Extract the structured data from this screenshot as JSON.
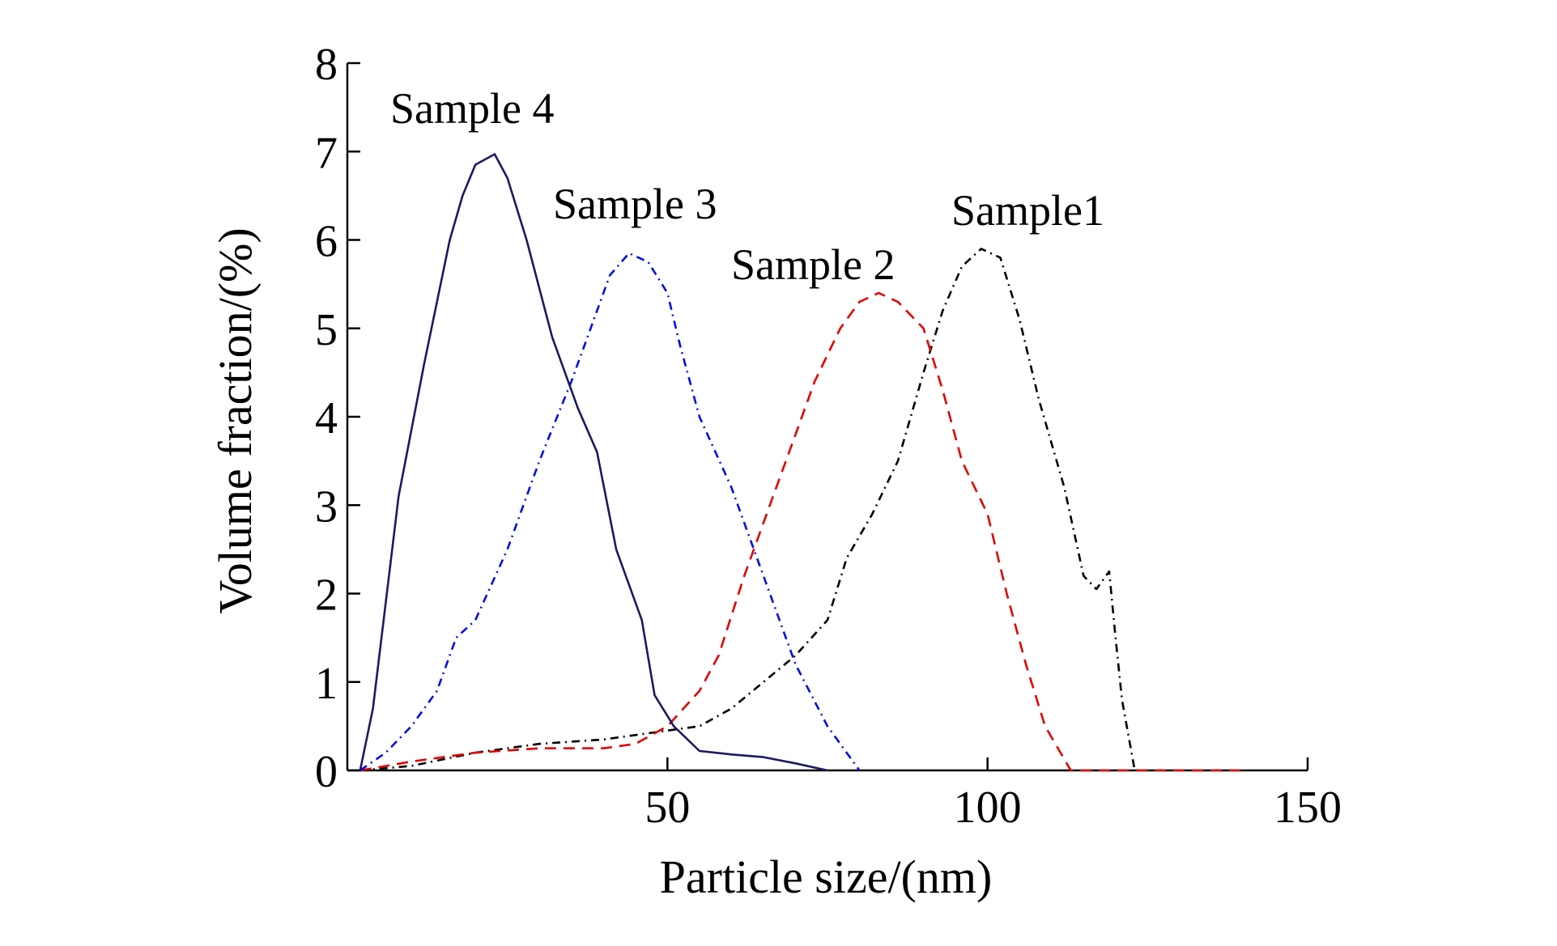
{
  "chart_data": {
    "type": "line",
    "title": "",
    "xlabel": "Particle size/(nm)",
    "ylabel": "Volume fraction/(%)",
    "xlim": [
      0,
      150
    ],
    "ylim": [
      0,
      8
    ],
    "xticks": [
      50,
      100,
      150
    ],
    "xtick_labels": [
      "50",
      "100",
      "150"
    ],
    "yticks": [
      0,
      1,
      2,
      3,
      4,
      5,
      6,
      7,
      8
    ],
    "ytick_labels": [
      "0",
      "1",
      "2",
      "3",
      "4",
      "5",
      "6",
      "7",
      "8"
    ],
    "grid": false,
    "legend": "none",
    "series": [
      {
        "name": "Sample1",
        "color": "#000000",
        "style": "dash-dot",
        "x": [
          2,
          10,
          20,
          30,
          40,
          50,
          55,
          60,
          65,
          70,
          75,
          78,
          82,
          86,
          90,
          93,
          96,
          99,
          102,
          105,
          108,
          112,
          115,
          117,
          119,
          120,
          121,
          123,
          124
        ],
        "y": [
          0,
          0.05,
          0.2,
          0.3,
          0.35,
          0.45,
          0.5,
          0.7,
          1.0,
          1.3,
          1.7,
          2.4,
          2.9,
          3.5,
          4.5,
          5.2,
          5.7,
          5.9,
          5.8,
          5.1,
          4.2,
          3.2,
          2.2,
          2.05,
          2.25,
          1.5,
          0.8,
          0,
          0
        ]
      },
      {
        "name": "Sample 2",
        "color": "#e00000",
        "style": "dashed",
        "x": [
          2,
          10,
          20,
          30,
          40,
          45,
          50,
          55,
          58,
          62,
          65,
          70,
          73,
          77,
          80,
          83,
          86,
          90,
          93,
          96,
          100,
          103,
          106,
          109,
          113,
          140
        ],
        "y": [
          0,
          0.1,
          0.2,
          0.25,
          0.25,
          0.3,
          0.5,
          0.9,
          1.3,
          2.2,
          2.8,
          3.8,
          4.4,
          5.0,
          5.3,
          5.4,
          5.3,
          5.0,
          4.3,
          3.5,
          2.9,
          2.0,
          1.2,
          0.5,
          0,
          0
        ]
      },
      {
        "name": "Sample 3",
        "color": "#0010e0",
        "style": "dash-dot",
        "x": [
          2,
          6,
          10,
          14,
          17,
          20,
          25,
          30,
          35,
          38,
          41,
          44,
          47,
          50,
          52,
          55,
          60,
          65,
          70,
          75,
          80
        ],
        "y": [
          0,
          0.2,
          0.5,
          0.9,
          1.5,
          1.7,
          2.5,
          3.5,
          4.4,
          5.0,
          5.6,
          5.85,
          5.75,
          5.4,
          4.8,
          4.0,
          3.2,
          2.2,
          1.2,
          0.5,
          0
        ]
      },
      {
        "name": "Sample 4",
        "color": "#1a1a60",
        "style": "solid",
        "x": [
          2,
          4,
          8,
          12,
          16,
          18,
          20,
          23,
          25,
          28,
          32,
          36,
          39,
          42,
          46,
          48,
          51,
          55,
          60,
          65,
          70,
          75
        ],
        "y": [
          0,
          0.7,
          3.1,
          4.6,
          6.0,
          6.5,
          6.85,
          6.97,
          6.7,
          6.0,
          4.9,
          4.1,
          3.6,
          2.5,
          1.7,
          0.85,
          0.5,
          0.22,
          0.18,
          0.15,
          0.08,
          0
        ]
      }
    ],
    "annotations": [
      "Sample 4",
      "Sample 3",
      "Sample 2",
      "Sample1"
    ]
  }
}
